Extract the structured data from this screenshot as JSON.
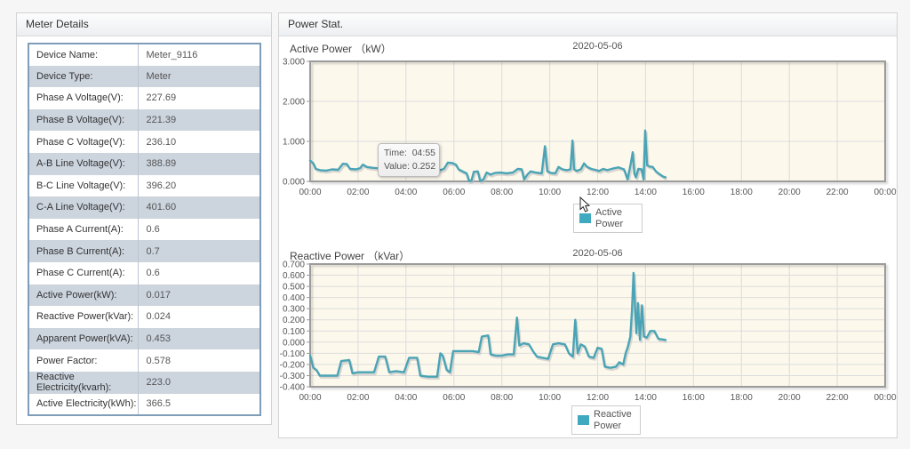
{
  "left_panel": {
    "title": "Meter Details",
    "rows": [
      {
        "label": "Device Name:",
        "value": "Meter_9116"
      },
      {
        "label": "Device Type:",
        "value": "Meter"
      },
      {
        "label": "Phase A Voltage(V):",
        "value": "227.69"
      },
      {
        "label": "Phase B Voltage(V):",
        "value": "221.39"
      },
      {
        "label": "Phase C Voltage(V):",
        "value": "236.10"
      },
      {
        "label": "A-B Line Voltage(V):",
        "value": "388.89"
      },
      {
        "label": "B-C Line Voltage(V):",
        "value": "396.20"
      },
      {
        "label": "C-A Line Voltage(V):",
        "value": "401.60"
      },
      {
        "label": "Phase A Current(A):",
        "value": "0.6"
      },
      {
        "label": "Phase B Current(A):",
        "value": "0.7"
      },
      {
        "label": "Phase C Current(A):",
        "value": "0.6"
      },
      {
        "label": "Active Power(kW):",
        "value": "0.017"
      },
      {
        "label": "Reactive Power(kVar):",
        "value": "0.024"
      },
      {
        "label": "Apparent Power(kVA):",
        "value": "0.453"
      },
      {
        "label": "Power Factor:",
        "value": "0.578"
      },
      {
        "label": "Reactive Electricity(kvarh):",
        "value": "223.0"
      },
      {
        "label": "Active Electricity(kWh):",
        "value": "366.5"
      }
    ]
  },
  "right_panel": {
    "title": "Power Stat."
  },
  "tooltip": {
    "time_label": "Time:",
    "time": "04:55",
    "value_label": "Value:",
    "value": "0.252"
  },
  "colors": {
    "line": "#4aa4b5",
    "line_shadow": "#b9b9b9",
    "plot_bg": "#fcf8ec",
    "grid": "#dcdcdc",
    "plot_border": "#9c9c9c",
    "swatch": "#3fa9bf"
  },
  "chart_data": [
    {
      "type": "line",
      "title": "Active Power （kW）",
      "subtitle": "2020-05-06",
      "legend": "Active Power",
      "legend_position": "bottom-center",
      "grid": true,
      "ylim": [
        0,
        3
      ],
      "y_ticks": [
        3,
        2,
        1,
        0
      ],
      "x_range_minutes": [
        0,
        1440
      ],
      "x_tick_minutes": [
        0,
        120,
        240,
        360,
        480,
        600,
        720,
        840,
        960,
        1080,
        1200,
        1320,
        1440
      ],
      "x_ticks": [
        "00:00",
        "02:00",
        "04:00",
        "06:00",
        "08:00",
        "10:00",
        "12:00",
        "14:00",
        "16:00",
        "18:00",
        "20:00",
        "22:00",
        "00:00"
      ],
      "series": [
        {
          "name": "Active Power",
          "points": [
            [
              0,
              0.52
            ],
            [
              8,
              0.45
            ],
            [
              14,
              0.31
            ],
            [
              25,
              0.28
            ],
            [
              40,
              0.27
            ],
            [
              55,
              0.3
            ],
            [
              70,
              0.29
            ],
            [
              82,
              0.44
            ],
            [
              92,
              0.43
            ],
            [
              100,
              0.31
            ],
            [
              115,
              0.3
            ],
            [
              125,
              0.33
            ],
            [
              132,
              0.42
            ],
            [
              142,
              0.36
            ],
            [
              155,
              0.34
            ],
            [
              168,
              0.33
            ],
            [
              182,
              0.34
            ],
            [
              192,
              0.42
            ],
            [
              200,
              0.38
            ],
            [
              212,
              0.36
            ],
            [
              228,
              0.37
            ],
            [
              238,
              0.28
            ],
            [
              252,
              0.26
            ],
            [
              268,
              0.25
            ],
            [
              282,
              0.26
            ],
            [
              295,
              0.252
            ],
            [
              308,
              0.25
            ],
            [
              322,
              0.27
            ],
            [
              335,
              0.31
            ],
            [
              345,
              0.47
            ],
            [
              355,
              0.46
            ],
            [
              365,
              0.42
            ],
            [
              372,
              0.3
            ],
            [
              382,
              0.25
            ],
            [
              392,
              0.2
            ],
            [
              398,
              0.01
            ],
            [
              404,
              0.02
            ],
            [
              410,
              0.24
            ],
            [
              420,
              0.25
            ],
            [
              426,
              0.01
            ],
            [
              434,
              0.05
            ],
            [
              442,
              0.22
            ],
            [
              452,
              0.17
            ],
            [
              462,
              0.21
            ],
            [
              476,
              0.22
            ],
            [
              492,
              0.2
            ],
            [
              508,
              0.22
            ],
            [
              520,
              0.31
            ],
            [
              530,
              0.3
            ],
            [
              536,
              0.05
            ],
            [
              544,
              0.17
            ],
            [
              552,
              0.25
            ],
            [
              565,
              0.22
            ],
            [
              580,
              0.2
            ],
            [
              588,
              0.88
            ],
            [
              594,
              0.25
            ],
            [
              604,
              0.21
            ],
            [
              614,
              0.2
            ],
            [
              622,
              0.36
            ],
            [
              632,
              0.3
            ],
            [
              643,
              0.28
            ],
            [
              652,
              0.3
            ],
            [
              657,
              1.02
            ],
            [
              661,
              0.3
            ],
            [
              668,
              0.26
            ],
            [
              678,
              0.3
            ],
            [
              686,
              0.45
            ],
            [
              694,
              0.36
            ],
            [
              704,
              0.31
            ],
            [
              714,
              0.29
            ],
            [
              724,
              0.26
            ],
            [
              734,
              0.31
            ],
            [
              744,
              0.28
            ],
            [
              758,
              0.32
            ],
            [
              772,
              0.35
            ],
            [
              786,
              0.3
            ],
            [
              795,
              0.05
            ],
            [
              803,
              0.45
            ],
            [
              808,
              0.73
            ],
            [
              812,
              0.2
            ],
            [
              816,
              0.1
            ],
            [
              822,
              0.31
            ],
            [
              830,
              0.3
            ],
            [
              835,
              0.05
            ],
            [
              839,
              1.27
            ],
            [
              844,
              0.4
            ],
            [
              850,
              0.37
            ],
            [
              858,
              0.36
            ],
            [
              866,
              0.25
            ],
            [
              875,
              0.18
            ],
            [
              884,
              0.12
            ],
            [
              890,
              0.1
            ]
          ]
        }
      ]
    },
    {
      "type": "line",
      "title": "Reactive Power （kVar）",
      "subtitle": "2020-05-06",
      "legend": "Reactive Power",
      "legend_position": "bottom-center",
      "grid": true,
      "ylim": [
        -0.4,
        0.7
      ],
      "y_ticks": [
        0.7,
        0.6,
        0.5,
        0.4,
        0.3,
        0.2,
        0.1,
        0,
        -0.1,
        -0.2,
        -0.3,
        -0.4
      ],
      "x_range_minutes": [
        0,
        1440
      ],
      "x_tick_minutes": [
        0,
        120,
        240,
        360,
        480,
        600,
        720,
        840,
        960,
        1080,
        1200,
        1320,
        1440
      ],
      "x_ticks": [
        "00:00",
        "02:00",
        "04:00",
        "06:00",
        "08:00",
        "10:00",
        "12:00",
        "14:00",
        "16:00",
        "18:00",
        "20:00",
        "22:00",
        "00:00"
      ],
      "series": [
        {
          "name": "Reactive Power",
          "points": [
            [
              0,
              -0.12
            ],
            [
              8,
              -0.23
            ],
            [
              16,
              -0.25
            ],
            [
              24,
              -0.3
            ],
            [
              45,
              -0.3
            ],
            [
              68,
              -0.3
            ],
            [
              78,
              -0.17
            ],
            [
              98,
              -0.16
            ],
            [
              106,
              -0.28
            ],
            [
              120,
              -0.27
            ],
            [
              140,
              -0.27
            ],
            [
              160,
              -0.27
            ],
            [
              172,
              -0.13
            ],
            [
              188,
              -0.13
            ],
            [
              198,
              -0.27
            ],
            [
              215,
              -0.26
            ],
            [
              235,
              -0.27
            ],
            [
              248,
              -0.14
            ],
            [
              268,
              -0.14
            ],
            [
              276,
              -0.3
            ],
            [
              295,
              -0.31
            ],
            [
              318,
              -0.31
            ],
            [
              326,
              -0.1
            ],
            [
              332,
              -0.12
            ],
            [
              342,
              -0.25
            ],
            [
              350,
              -0.27
            ],
            [
              358,
              -0.08
            ],
            [
              372,
              -0.08
            ],
            [
              390,
              -0.08
            ],
            [
              408,
              -0.08
            ],
            [
              422,
              -0.09
            ],
            [
              430,
              0.05
            ],
            [
              446,
              0.06
            ],
            [
              452,
              -0.11
            ],
            [
              465,
              -0.12
            ],
            [
              480,
              -0.12
            ],
            [
              495,
              -0.11
            ],
            [
              510,
              -0.11
            ],
            [
              518,
              0.22
            ],
            [
              524,
              -0.03
            ],
            [
              535,
              -0.01
            ],
            [
              548,
              -0.02
            ],
            [
              558,
              -0.08
            ],
            [
              568,
              -0.13
            ],
            [
              582,
              -0.14
            ],
            [
              596,
              -0.15
            ],
            [
              608,
              -0.02
            ],
            [
              622,
              -0.01
            ],
            [
              638,
              -0.02
            ],
            [
              648,
              -0.1
            ],
            [
              658,
              -0.13
            ],
            [
              664,
              0.2
            ],
            [
              670,
              -0.1
            ],
            [
              678,
              -0.02
            ],
            [
              688,
              -0.04
            ],
            [
              698,
              -0.13
            ],
            [
              710,
              -0.14
            ],
            [
              720,
              -0.05
            ],
            [
              730,
              -0.06
            ],
            [
              738,
              -0.22
            ],
            [
              752,
              -0.23
            ],
            [
              766,
              -0.22
            ],
            [
              774,
              -0.18
            ],
            [
              784,
              -0.2
            ],
            [
              790,
              -0.1
            ],
            [
              796,
              -0.04
            ],
            [
              802,
              0.05
            ],
            [
              806,
              0.28
            ],
            [
              810,
              0.62
            ],
            [
              814,
              0.3
            ],
            [
              817,
              0.08
            ],
            [
              821,
              0.35
            ],
            [
              826,
              0.02
            ],
            [
              831,
              0.33
            ],
            [
              836,
              0.05
            ],
            [
              843,
              0.04
            ],
            [
              852,
              0.1
            ],
            [
              862,
              0.1
            ],
            [
              872,
              0.03
            ],
            [
              890,
              0.02
            ]
          ]
        }
      ]
    }
  ]
}
